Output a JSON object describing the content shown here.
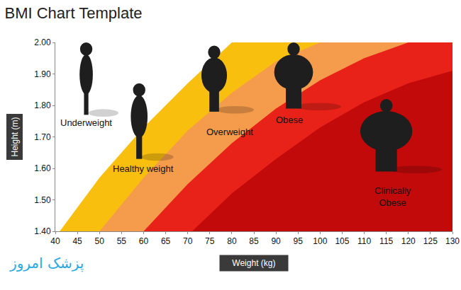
{
  "chart_data": {
    "type": "area",
    "title": "BMI Chart Template",
    "x_label": "Weight (kg)",
    "y_label": "Height (m)",
    "xlim": [
      40,
      130
    ],
    "xticks": [
      40,
      45,
      50,
      55,
      60,
      65,
      70,
      75,
      80,
      85,
      90,
      95,
      100,
      105,
      110,
      115,
      120,
      125,
      130
    ],
    "ylim": [
      1.4,
      2.0
    ],
    "yticks": [
      {
        "value": 1.4,
        "label": "1.40"
      },
      {
        "value": 1.5,
        "label": "1.50"
      },
      {
        "value": 1.6,
        "label": "1.60"
      },
      {
        "value": 1.7,
        "label": "1.70"
      },
      {
        "value": 1.8,
        "label": "1.80"
      },
      {
        "value": 1.9,
        "label": "1.90"
      },
      {
        "value": 2.0,
        "label": "2.00"
      }
    ],
    "grid": false,
    "series": [
      {
        "color": "#f9bf0f",
        "x": [
          41,
          50,
          60,
          70,
          80
        ],
        "values": [
          1.4,
          1.57,
          1.73,
          1.87,
          2.0
        ]
      },
      {
        "color": "#f59c4c",
        "x": [
          50,
          60,
          70,
          80,
          90,
          100
        ],
        "values": [
          1.4,
          1.57,
          1.72,
          1.84,
          1.94,
          2.0
        ]
      },
      {
        "color": "#e82219",
        "x": [
          60,
          70,
          80,
          90,
          100,
          110,
          120
        ],
        "values": [
          1.4,
          1.55,
          1.68,
          1.79,
          1.88,
          1.95,
          2.0
        ]
      },
      {
        "color": "#c20a0a",
        "x": [
          71,
          80,
          90,
          100,
          110,
          120,
          130
        ],
        "values": [
          1.4,
          1.52,
          1.63,
          1.73,
          1.81,
          1.87,
          1.91
        ]
      }
    ],
    "annotations": [
      {
        "text": "Underweight",
        "x": 47,
        "y": 1.745
      },
      {
        "text": "Healthy weight",
        "x": 60,
        "y": 1.6
      },
      {
        "text": "Overweight",
        "x": 79.5,
        "y": 1.715
      },
      {
        "text": "Obese",
        "x": 93,
        "y": 1.755
      },
      {
        "text": "Clinically\nObese",
        "x": 116.5,
        "y": 1.51
      }
    ]
  },
  "watermark": "پزشک امروز"
}
